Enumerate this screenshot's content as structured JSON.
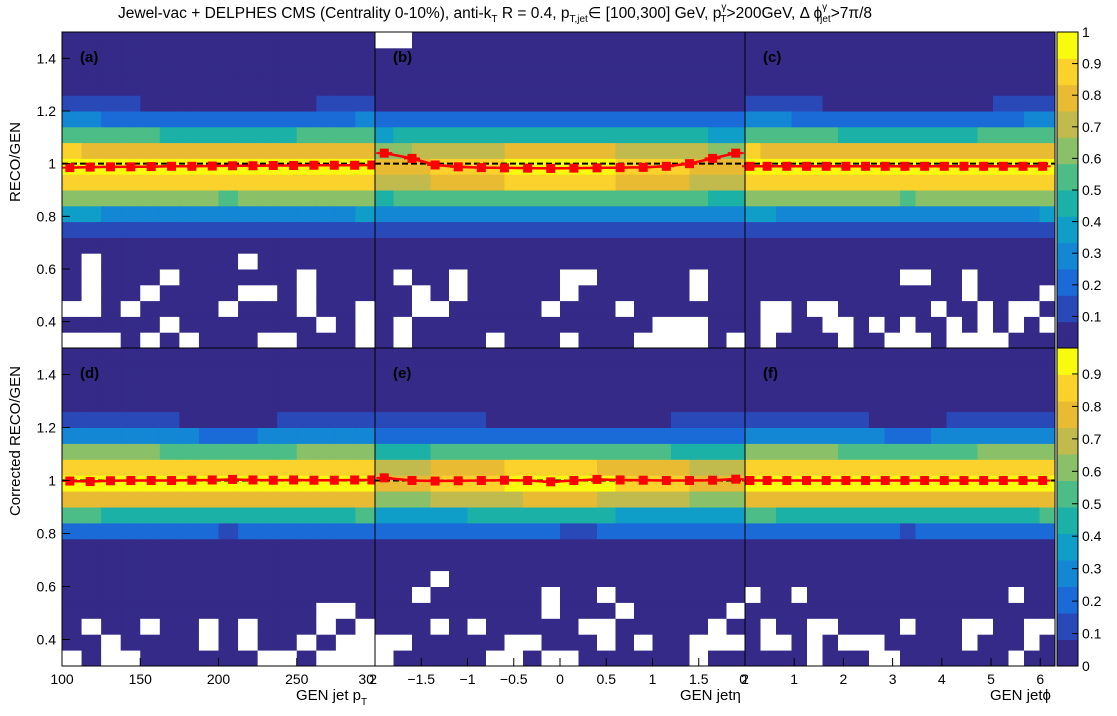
{
  "figure": {
    "title_parts": {
      "p1": "Jewel-vac + DELPHES CMS (Centrality 0-10%), anti-k",
      "s1": "T",
      "p2": " R = 0.4, p",
      "s2": "T,jet",
      "p3": "∈ [100,300] GeV, p",
      "sup3": "γ",
      "s3": "T",
      "p4": ">200GeV,   Δ   ϕ",
      "sup4": "γ",
      "s4": "jet",
      "p5": ">7π/8"
    },
    "row_ylabels": [
      "RECO/GEN",
      "Corrected RECO/GEN"
    ],
    "col_xlabels": [
      {
        "main": "GEN jet p",
        "sub": "T"
      },
      {
        "main": "GEN jetη",
        "sub": ""
      },
      {
        "main": "GEN jetϕ",
        "sub": ""
      }
    ],
    "y_ticks": [
      "1.4",
      "1.2",
      "1",
      "0.8",
      "0.6",
      "0.4"
    ],
    "x_ticks": [
      [
        "100",
        "150",
        "200",
        "250",
        "30"
      ],
      [
        "2",
        "−1.5",
        "−1",
        "−0.5",
        "0",
        "0.5",
        "1",
        "1.5",
        "2"
      ],
      [
        "0",
        "1",
        "2",
        "3",
        "4",
        "5",
        "6"
      ]
    ],
    "colorbar_ticks_top": [
      "1",
      "0.9",
      "0.8",
      "0.7",
      "0.6",
      "0.5",
      "0.4",
      "0.3",
      "0.2",
      "0.1"
    ],
    "colorbar_ticks_bottom": [
      "0.9",
      "0.8",
      "0.7",
      "0.6",
      "0.5",
      "0.4",
      "0.3",
      "0.2",
      "0.1",
      "0"
    ],
    "colors": {
      "palette": [
        "#352a87",
        "#2a49b8",
        "#1a6ad7",
        "#1386d4",
        "#0f9ec8",
        "#1bb1a6",
        "#4cbd86",
        "#89c068",
        "#c0bb4c",
        "#e9bb33",
        "#fbd12b",
        "#f9fb0e"
      ],
      "empty_cell": "#ffffff",
      "markers": "#ff0000",
      "reference_line": "#000000"
    }
  },
  "chart_data": [
    {
      "type": "heatmap",
      "panel_label": "(a)",
      "xlabel": "GEN jet pT",
      "ylabel": "RECO/GEN",
      "x_range": [
        100,
        300
      ],
      "y_range": [
        0.3,
        1.5
      ],
      "z_range": [
        0,
        1
      ],
      "reference_line_y": 1,
      "marker_x": [
        105,
        118,
        131,
        144,
        157,
        170,
        183,
        196,
        209,
        222,
        235,
        248,
        261,
        274,
        287,
        298
      ],
      "marker_y": [
        0.985,
        0.987,
        0.988,
        0.988,
        0.989,
        0.99,
        0.99,
        0.991,
        0.992,
        0.992,
        0.993,
        0.993,
        0.994,
        0.994,
        0.994,
        0.995
      ]
    },
    {
      "type": "heatmap",
      "panel_label": "(b)",
      "xlabel": "GEN jetη",
      "ylabel": "RECO/GEN",
      "x_range": [
        -2,
        2
      ],
      "y_range": [
        0.3,
        1.5
      ],
      "z_range": [
        0,
        1
      ],
      "reference_line_y": 1,
      "marker_x": [
        -1.9,
        -1.6,
        -1.35,
        -1.1,
        -0.85,
        -0.6,
        -0.35,
        -0.1,
        0.15,
        0.4,
        0.65,
        0.9,
        1.15,
        1.4,
        1.65,
        1.9
      ],
      "marker_y": [
        1.04,
        1.02,
        0.995,
        0.988,
        0.985,
        0.984,
        0.983,
        0.982,
        0.983,
        0.984,
        0.985,
        0.986,
        0.99,
        1.0,
        1.02,
        1.04
      ]
    },
    {
      "type": "heatmap",
      "panel_label": "(c)",
      "xlabel": "GEN jetϕ",
      "ylabel": "RECO/GEN",
      "x_range": [
        0,
        6.3
      ],
      "y_range": [
        0.3,
        1.5
      ],
      "z_range": [
        0,
        1
      ],
      "reference_line_y": 1,
      "marker_x": [
        0.1,
        0.45,
        0.85,
        1.25,
        1.65,
        2.05,
        2.45,
        2.85,
        3.25,
        3.65,
        4.05,
        4.45,
        4.85,
        5.25,
        5.65,
        6.05
      ],
      "marker_y": [
        0.99,
        0.99,
        0.99,
        0.99,
        0.99,
        0.99,
        0.99,
        0.99,
        0.99,
        0.99,
        0.99,
        0.99,
        0.99,
        0.99,
        0.99,
        0.99
      ]
    },
    {
      "type": "heatmap",
      "panel_label": "(d)",
      "xlabel": "GEN jet pT",
      "ylabel": "Corrected RECO/GEN",
      "x_range": [
        100,
        300
      ],
      "y_range": [
        0.3,
        1.5
      ],
      "z_range": [
        0,
        1
      ],
      "reference_line_y": 1,
      "marker_x": [
        105,
        118,
        131,
        144,
        157,
        170,
        183,
        196,
        209,
        222,
        235,
        248,
        261,
        274,
        287,
        298
      ],
      "marker_y": [
        0.998,
        0.996,
        0.999,
        1.0,
        1.0,
        1.0,
        1.001,
        1.002,
        1.004,
        1.002,
        1.001,
        1.002,
        1.001,
        1.001,
        1.002,
        1.002
      ]
    },
    {
      "type": "heatmap",
      "panel_label": "(e)",
      "xlabel": "GEN jetη",
      "ylabel": "Corrected RECO/GEN",
      "x_range": [
        -2,
        2
      ],
      "y_range": [
        0.3,
        1.5
      ],
      "z_range": [
        0,
        1
      ],
      "reference_line_y": 1,
      "marker_x": [
        -1.9,
        -1.6,
        -1.35,
        -1.1,
        -0.85,
        -0.6,
        -0.35,
        -0.1,
        0.15,
        0.4,
        0.65,
        0.9,
        1.15,
        1.4,
        1.65,
        1.9
      ],
      "marker_y": [
        1.01,
        1.0,
        0.998,
        0.999,
        1.0,
        1.001,
        1.0,
        0.995,
        1.0,
        1.004,
        1.002,
        1.001,
        1.0,
        1.0,
        1.001,
        1.005
      ]
    },
    {
      "type": "heatmap",
      "panel_label": "(f)",
      "xlabel": "GEN jetϕ",
      "ylabel": "Corrected RECO/GEN",
      "x_range": [
        0,
        6.3
      ],
      "y_range": [
        0.3,
        1.5
      ],
      "z_range": [
        0,
        1
      ],
      "reference_line_y": 1,
      "marker_x": [
        0.1,
        0.45,
        0.85,
        1.25,
        1.65,
        2.05,
        2.45,
        2.85,
        3.25,
        3.65,
        4.05,
        4.45,
        4.85,
        5.25,
        5.65,
        6.05
      ],
      "marker_y": [
        1.0,
        1.0,
        1.0,
        1.0,
        1.0,
        1.0,
        1.0,
        1.0,
        1.0,
        1.0,
        1.0,
        1.0,
        1.0,
        1.0,
        1.0,
        1.0
      ]
    }
  ]
}
